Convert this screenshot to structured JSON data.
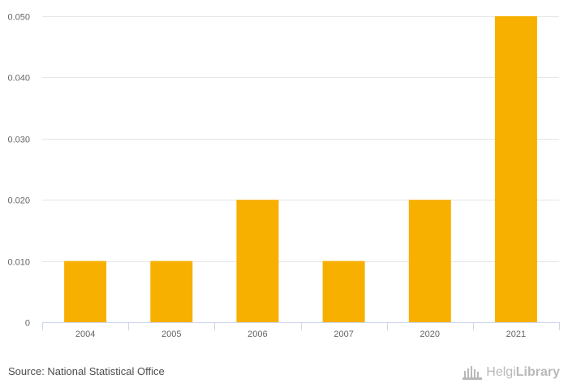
{
  "chart_data": {
    "type": "bar",
    "title": "",
    "xlabel": "",
    "ylabel": "",
    "categories": [
      "2004",
      "2005",
      "2006",
      "2007",
      "2020",
      "2021"
    ],
    "values": [
      0.01,
      0.01,
      0.02,
      0.01,
      0.02,
      0.05
    ],
    "ylim": [
      0,
      0.05
    ],
    "yticks": [
      0,
      0.01,
      0.02,
      0.03,
      0.04,
      0.05
    ],
    "ytick_labels": [
      "0",
      "0.010",
      "0.020",
      "0.030",
      "0.040",
      "0.050"
    ],
    "grid": true,
    "bar_color": "#f7b000"
  },
  "footer": {
    "source": "Source: National Statistical Office",
    "brand_light": "Helgi",
    "brand_bold": "Library"
  },
  "colors": {
    "grid": "#e6e6e6",
    "axis": "#ccd6eb",
    "text": "#666666"
  }
}
